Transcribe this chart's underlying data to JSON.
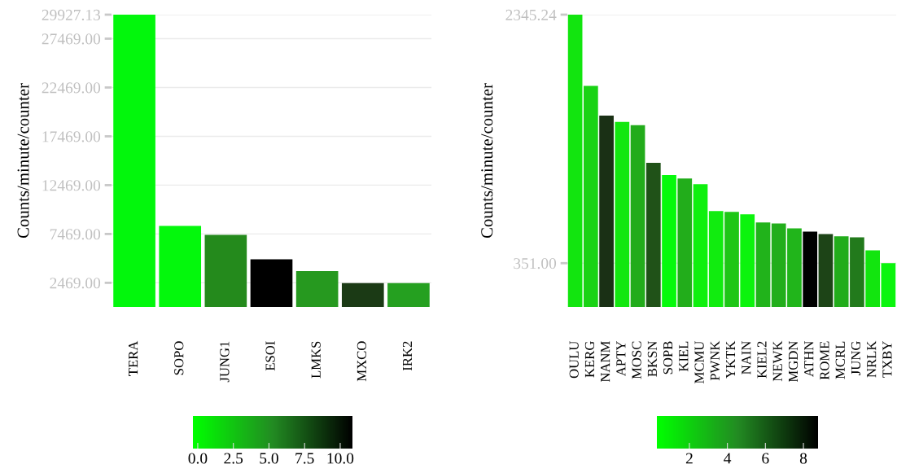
{
  "chart_data": [
    {
      "type": "bar",
      "ylabel": "Counts/minute/counter",
      "categories": [
        "TERA",
        "SOPO",
        "JUNG1",
        "ESOI",
        "LMKS",
        "MXCO",
        "IRK2"
      ],
      "values": [
        29927.13,
        8302,
        7386,
        4886,
        3677,
        2436,
        2436
      ],
      "colors": [
        "#02f70c",
        "#03f80c",
        "#248a1c",
        "#000000",
        "#26991f",
        "#1b3a15",
        "#25a020"
      ],
      "ylim": [
        0,
        29927.13
      ],
      "yticks": [
        {
          "value": 2469,
          "label": "2469.00"
        },
        {
          "value": 7469,
          "label": "7469.00"
        },
        {
          "value": 12469,
          "label": "12469.00"
        },
        {
          "value": 17469,
          "label": "17469.00"
        },
        {
          "value": 22469,
          "label": "22469.00"
        },
        {
          "value": 27469,
          "label": "27469.00"
        },
        {
          "value": 29927.13,
          "label": "29927.13"
        }
      ],
      "grid": "y",
      "clim": [
        -0.34,
        10.86
      ],
      "cticks": [
        {
          "value": 0,
          "label": "0.0"
        },
        {
          "value": 2.5,
          "label": "2.5"
        },
        {
          "value": 5,
          "label": "5.0"
        },
        {
          "value": 7.5,
          "label": "7.5"
        },
        {
          "value": 10,
          "label": "10.0"
        }
      ]
    },
    {
      "type": "bar",
      "ylabel": "Counts/minute/counter",
      "categories": [
        "OULU",
        "KERG",
        "NANM",
        "APTY",
        "MOSC",
        "BKSN",
        "SOPB",
        "KIEL",
        "MCMU",
        "PWNK",
        "YKTK",
        "NAIN",
        "KIEL2",
        "NEWK",
        "MGDN",
        "ATHN",
        "ROME",
        "MCRL",
        "JUNG",
        "NRLK",
        "TXBY"
      ],
      "values": [
        2345.24,
        1773,
        1536,
        1484,
        1458,
        1156,
        1058,
        1031,
        985,
        769,
        762,
        743,
        677,
        670,
        631,
        605,
        585,
        566,
        559,
        454,
        351
      ],
      "colors": [
        "#12e50f",
        "#19d314",
        "#1a3015",
        "#12e70f",
        "#22ac1b",
        "#205218",
        "#05fa0c",
        "#22ad1b",
        "#0ff00e",
        "#11ec0f",
        "#1ec616",
        "#0cf40d",
        "#21b31b",
        "#22ae1b",
        "#21b51b",
        "#000000",
        "#1d4417",
        "#22ac1b",
        "#227a1c",
        "#12e50f",
        "#0bf50e"
      ],
      "ylim": [
        0,
        2345.24
      ],
      "yticks": [
        {
          "value": 351,
          "label": "351.00"
        },
        {
          "value": 2345.24,
          "label": "2345.24"
        }
      ],
      "grid": "y",
      "clim": [
        0.29,
        8.77
      ],
      "cticks": [
        2,
        4,
        6,
        8
      ]
    }
  ]
}
